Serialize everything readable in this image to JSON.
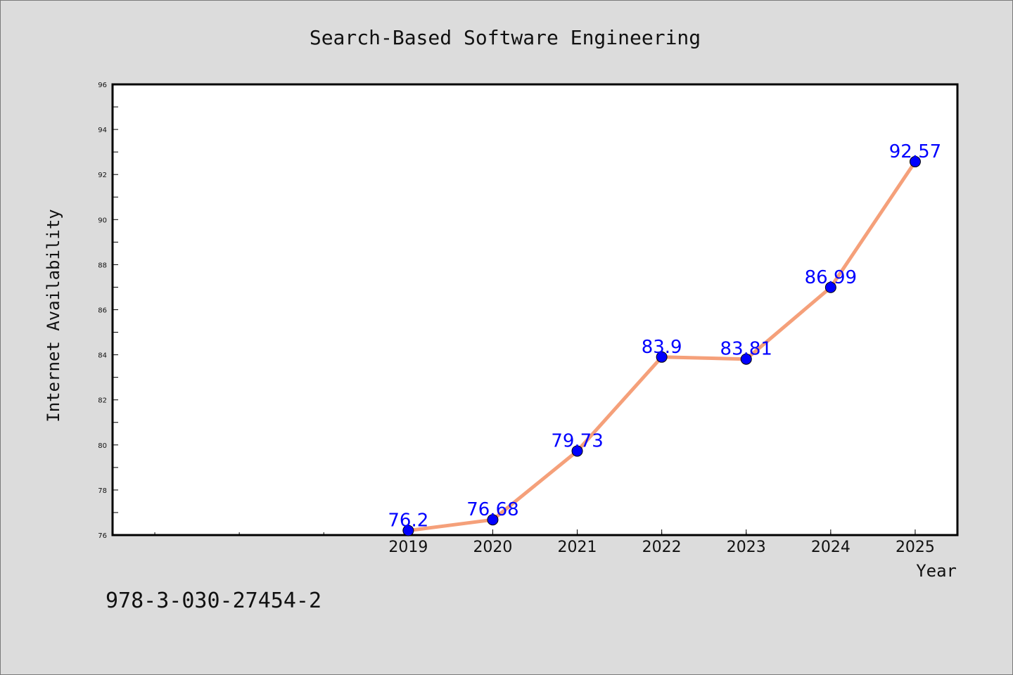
{
  "footer": {
    "text": "978-3-030-27454-2"
  },
  "chart_data": {
    "type": "line",
    "title": "Search-Based Software Engineering",
    "xlabel": "Year",
    "ylabel": "Internet Availability",
    "x": [
      "2019",
      "2020",
      "2021",
      "2022",
      "2023",
      "2024",
      "2025"
    ],
    "series": [
      {
        "values": [
          76.2,
          76.68,
          79.73,
          83.9,
          83.81,
          86.99,
          92.57
        ],
        "data_labels": [
          "76.2",
          "76.68",
          "79.73",
          "83.9",
          "83.81",
          "86.99",
          "92.57"
        ]
      }
    ],
    "ylim": [
      76,
      96
    ],
    "yticks": [
      76,
      78,
      80,
      82,
      84,
      86,
      88,
      90,
      92,
      94,
      96
    ],
    "xlim": [
      2015.5,
      2025.5
    ],
    "grid": false,
    "legend": "none",
    "colors": {
      "line": "#f5a07a",
      "marker": "#0000ff",
      "label": "#0000ff",
      "background": "#dcdcdc",
      "plot_bg": "#ffffff"
    }
  }
}
